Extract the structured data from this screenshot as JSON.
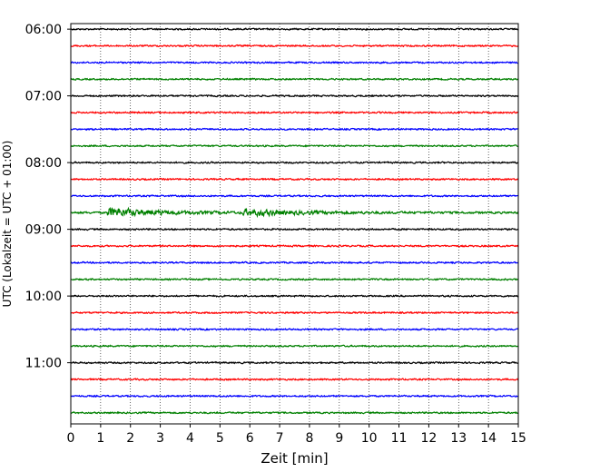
{
  "chart_data": {
    "type": "line",
    "title": "",
    "xlabel": "Zeit  [min]",
    "ylabel": "UTC (Lokalzeit = UTC + 01:00)",
    "xlim": [
      0,
      15
    ],
    "x_ticks": [
      "0",
      "1",
      "2",
      "3",
      "4",
      "5",
      "6",
      "7",
      "8",
      "9",
      "10",
      "11",
      "12",
      "13",
      "14",
      "15"
    ],
    "y_ticks": [
      "06:00",
      "07:00",
      "08:00",
      "09:00",
      "10:00",
      "11:00"
    ],
    "ylim_minutes_utc": [
      355,
      715
    ],
    "grid": "vertical dotted at each minute",
    "trace_interval_minutes": 15,
    "trace_colors": [
      "#000000",
      "#ff0000",
      "#0000ff",
      "#008000"
    ],
    "traces": [
      {
        "start": "06:00",
        "color": "#000000",
        "amplitude": 1.0
      },
      {
        "start": "06:15",
        "color": "#ff0000",
        "amplitude": 1.0
      },
      {
        "start": "06:30",
        "color": "#0000ff",
        "amplitude": 1.0
      },
      {
        "start": "06:45",
        "color": "#008000",
        "amplitude": 1.0
      },
      {
        "start": "07:00",
        "color": "#000000",
        "amplitude": 1.0
      },
      {
        "start": "07:15",
        "color": "#ff0000",
        "amplitude": 1.0
      },
      {
        "start": "07:30",
        "color": "#0000ff",
        "amplitude": 1.0
      },
      {
        "start": "07:45",
        "color": "#008000",
        "amplitude": 1.0
      },
      {
        "start": "08:00",
        "color": "#000000",
        "amplitude": 1.0
      },
      {
        "start": "08:15",
        "color": "#ff0000",
        "amplitude": 1.0
      },
      {
        "start": "08:30",
        "color": "#0000ff",
        "amplitude": 1.0
      },
      {
        "start": "08:45",
        "color": "#008000",
        "amplitude": 1.3,
        "events": [
          {
            "time_min": 1.2,
            "peak": 9,
            "decay_min": 1.6
          },
          {
            "time_min": 5.75,
            "peak": 6,
            "decay_min": 1.8
          }
        ]
      },
      {
        "start": "09:00",
        "color": "#000000",
        "amplitude": 1.0
      },
      {
        "start": "09:15",
        "color": "#ff0000",
        "amplitude": 1.0
      },
      {
        "start": "09:30",
        "color": "#0000ff",
        "amplitude": 1.0
      },
      {
        "start": "09:45",
        "color": "#008000",
        "amplitude": 1.0
      },
      {
        "start": "10:00",
        "color": "#000000",
        "amplitude": 1.0
      },
      {
        "start": "10:15",
        "color": "#ff0000",
        "amplitude": 1.0
      },
      {
        "start": "10:30",
        "color": "#0000ff",
        "amplitude": 1.0
      },
      {
        "start": "10:45",
        "color": "#008000",
        "amplitude": 1.0
      },
      {
        "start": "11:00",
        "color": "#000000",
        "amplitude": 1.0
      },
      {
        "start": "11:15",
        "color": "#ff0000",
        "amplitude": 1.0
      },
      {
        "start": "11:30",
        "color": "#0000ff",
        "amplitude": 1.0
      },
      {
        "start": "11:45",
        "color": "#008000",
        "amplitude": 1.0
      }
    ]
  }
}
